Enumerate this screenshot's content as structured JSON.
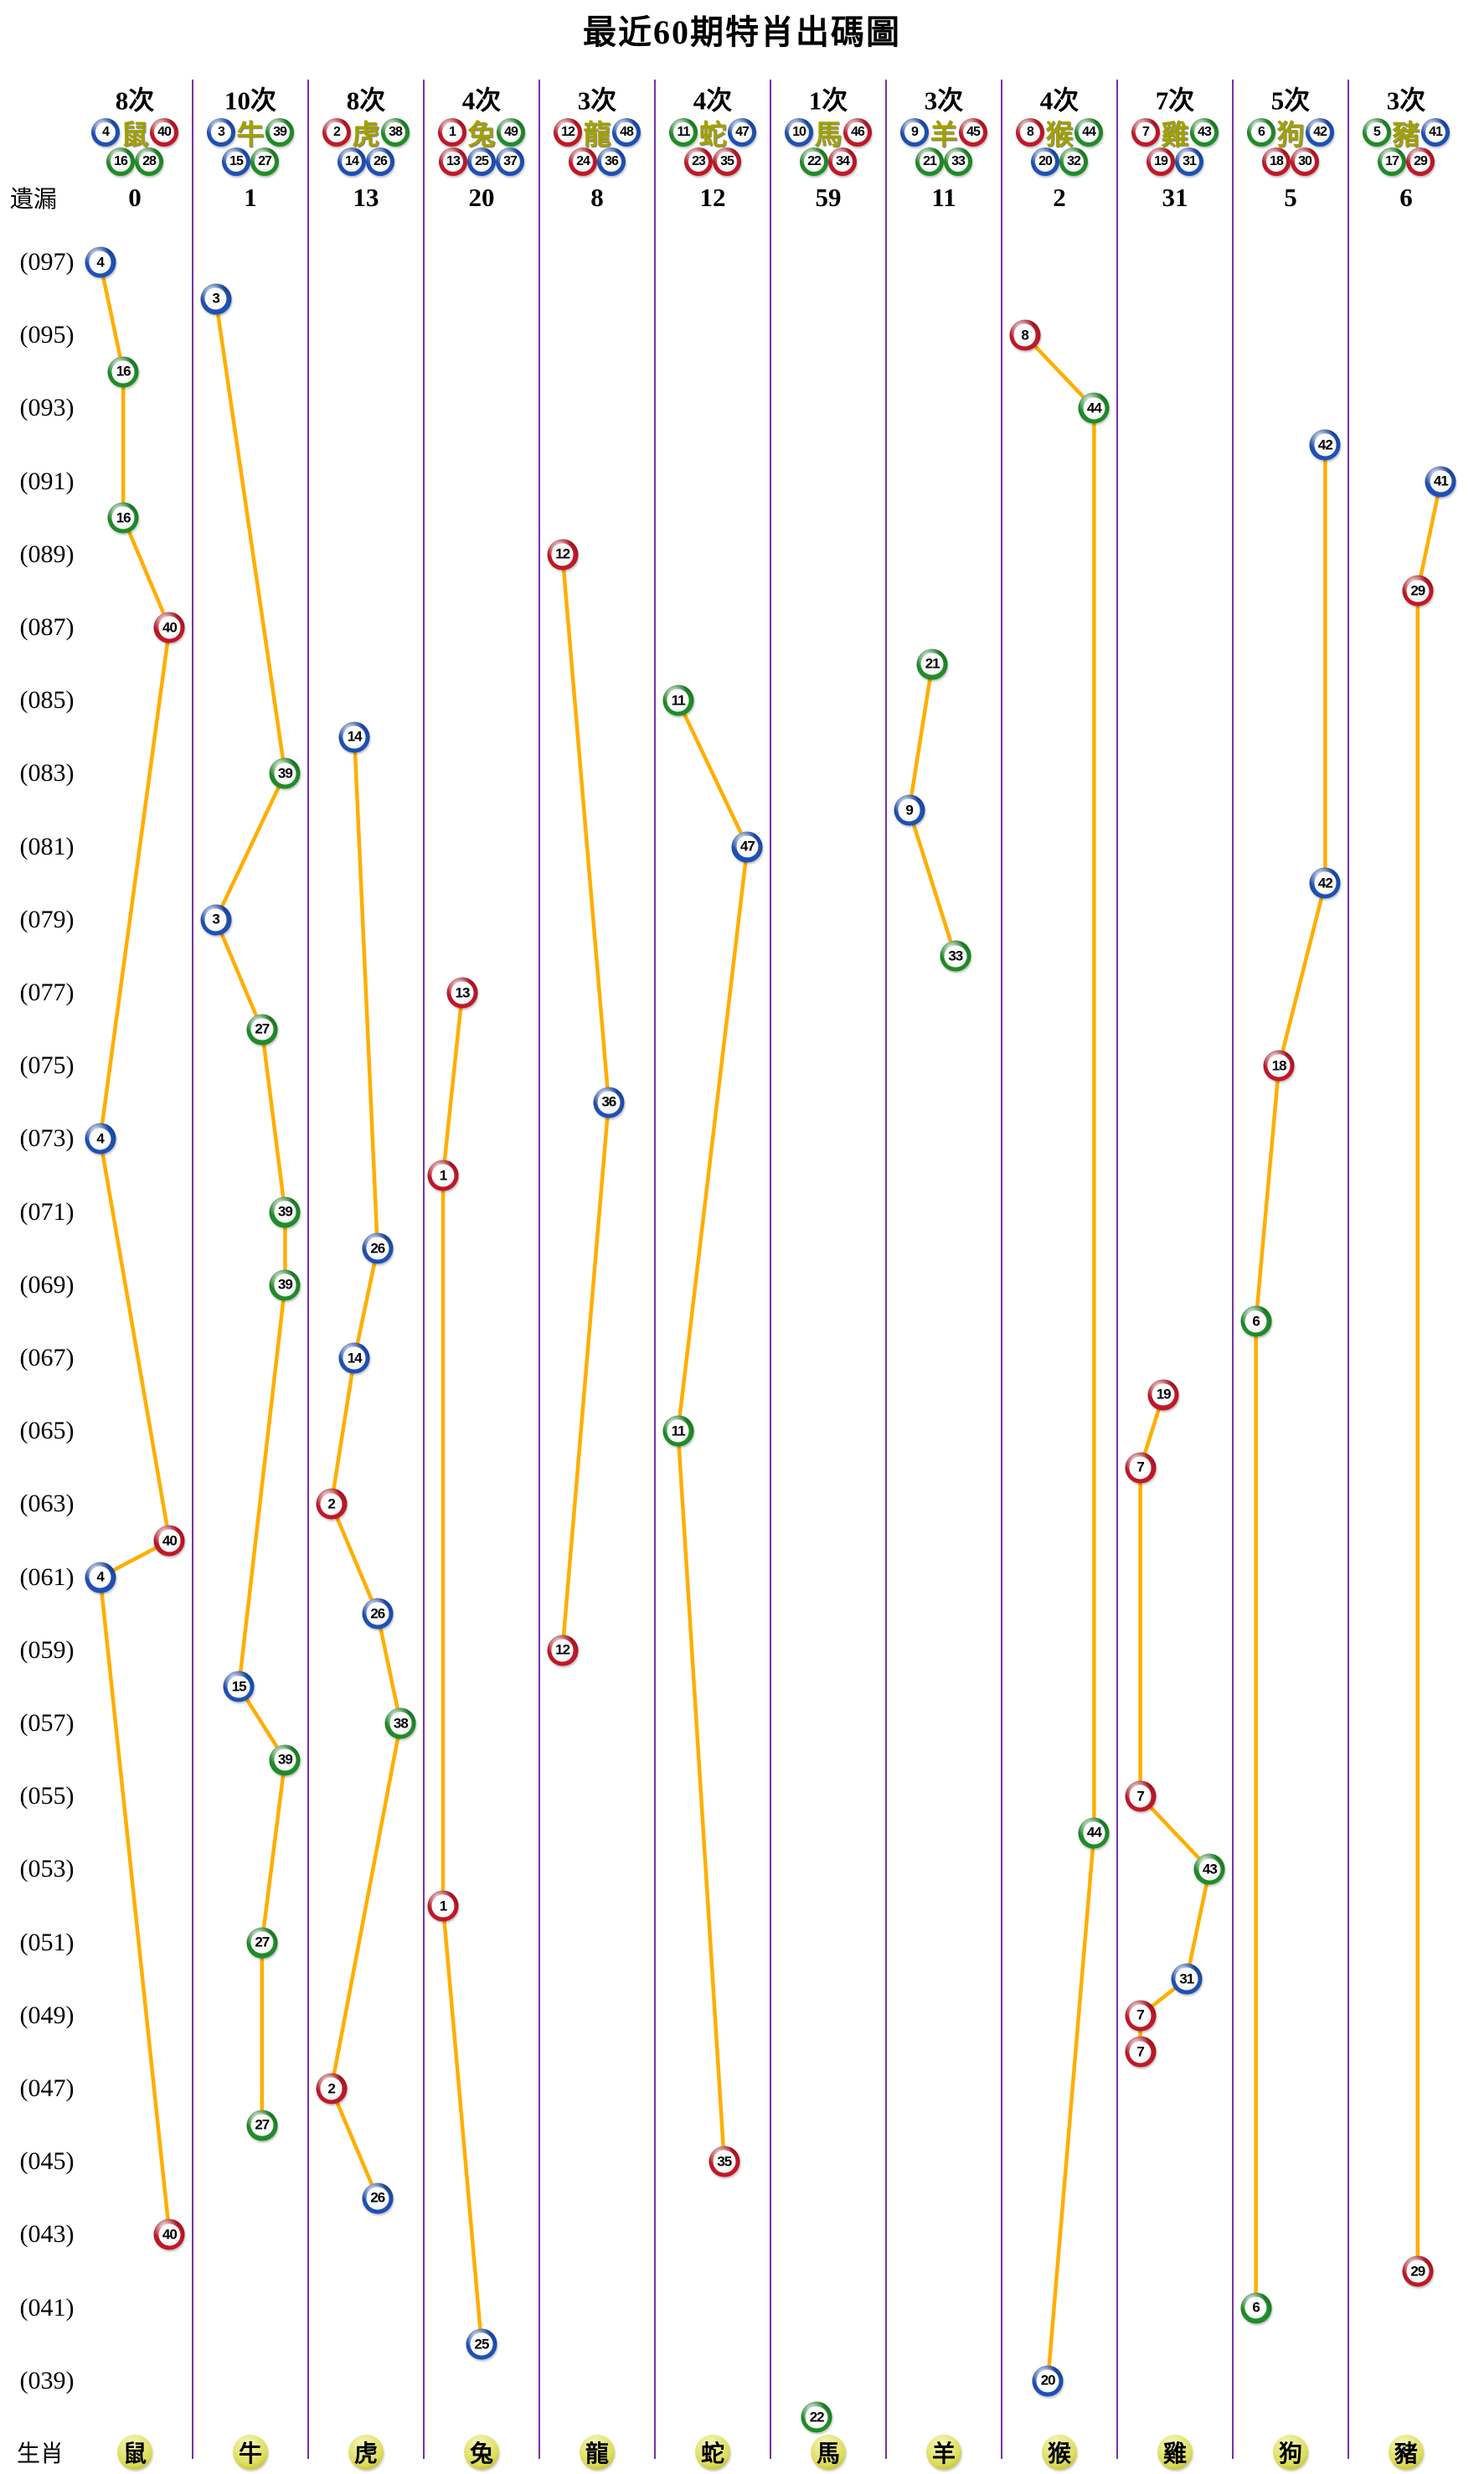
{
  "colors": {
    "line": "#FFAE00",
    "separator": "#7633A6",
    "ball_red": "#C01828",
    "ball_blue": "#1E50B4",
    "ball_green": "#1F8C28",
    "zodiac_header_text": "#A2A100",
    "badge_yellow": "#DCDC5A",
    "title_text": "#000000"
  },
  "ball_colors": {
    "red": [
      1,
      2,
      7,
      8,
      12,
      13,
      18,
      19,
      23,
      24,
      29,
      30,
      34,
      35,
      40,
      45,
      46
    ],
    "blue": [
      3,
      4,
      9,
      10,
      14,
      15,
      20,
      25,
      26,
      31,
      36,
      37,
      41,
      42,
      47,
      48
    ],
    "green": [
      5,
      6,
      11,
      16,
      17,
      21,
      22,
      27,
      28,
      32,
      33,
      38,
      39,
      43,
      44,
      49
    ]
  },
  "chart_data": {
    "type": "scatter",
    "title": "最近60期特肖出碼圖",
    "miss_label": "遺漏",
    "zodiac_row_label": "生肖",
    "grid": false,
    "legend": "none",
    "y_axis": {
      "labels": [
        "(097)",
        "(095)",
        "(093)",
        "(091)",
        "(089)",
        "(087)",
        "(085)",
        "(083)",
        "(081)",
        "(079)",
        "(077)",
        "(075)",
        "(073)",
        "(071)",
        "(069)",
        "(067)",
        "(065)",
        "(063)",
        "(061)",
        "(059)",
        "(057)",
        "(055)",
        "(053)",
        "(051)",
        "(049)",
        "(047)",
        "(045)",
        "(043)",
        "(041)",
        "(039)"
      ],
      "period_range": [
        97,
        38
      ],
      "direction": "newest-on-top"
    },
    "columns": [
      {
        "zodiac": "鼠",
        "count_label": "8次",
        "miss": 0,
        "numbers": [
          4,
          16,
          28,
          40
        ],
        "draws": [
          {
            "period": 97,
            "ball": 4
          },
          {
            "period": 94,
            "ball": 16
          },
          {
            "period": 90,
            "ball": 16
          },
          {
            "period": 87,
            "ball": 40
          },
          {
            "period": 73,
            "ball": 4
          },
          {
            "period": 62,
            "ball": 40
          },
          {
            "period": 61,
            "ball": 4
          },
          {
            "period": 43,
            "ball": 40
          }
        ]
      },
      {
        "zodiac": "牛",
        "count_label": "10次",
        "miss": 1,
        "numbers": [
          3,
          15,
          27,
          39
        ],
        "draws": [
          {
            "period": 96,
            "ball": 3
          },
          {
            "period": 83,
            "ball": 39
          },
          {
            "period": 79,
            "ball": 3
          },
          {
            "period": 76,
            "ball": 27
          },
          {
            "period": 71,
            "ball": 39
          },
          {
            "period": 69,
            "ball": 39
          },
          {
            "period": 58,
            "ball": 15
          },
          {
            "period": 56,
            "ball": 39
          },
          {
            "period": 51,
            "ball": 27
          },
          {
            "period": 46,
            "ball": 27
          }
        ]
      },
      {
        "zodiac": "虎",
        "count_label": "8次",
        "miss": 13,
        "numbers": [
          2,
          14,
          26,
          38
        ],
        "draws": [
          {
            "period": 84,
            "ball": 14
          },
          {
            "period": 70,
            "ball": 26
          },
          {
            "period": 67,
            "ball": 14
          },
          {
            "period": 63,
            "ball": 2
          },
          {
            "period": 60,
            "ball": 26
          },
          {
            "period": 57,
            "ball": 38
          },
          {
            "period": 47,
            "ball": 2
          },
          {
            "period": 44,
            "ball": 26
          }
        ]
      },
      {
        "zodiac": "兔",
        "count_label": "4次",
        "miss": 20,
        "numbers": [
          1,
          13,
          25,
          37,
          49
        ],
        "draws": [
          {
            "period": 77,
            "ball": 13
          },
          {
            "period": 72,
            "ball": 1
          },
          {
            "period": 52,
            "ball": 1
          },
          {
            "period": 40,
            "ball": 25
          }
        ]
      },
      {
        "zodiac": "龍",
        "count_label": "3次",
        "miss": 8,
        "numbers": [
          12,
          24,
          36,
          48
        ],
        "draws": [
          {
            "period": 89,
            "ball": 12
          },
          {
            "period": 74,
            "ball": 36
          },
          {
            "period": 59,
            "ball": 12
          }
        ]
      },
      {
        "zodiac": "蛇",
        "count_label": "4次",
        "miss": 12,
        "numbers": [
          11,
          23,
          35,
          47
        ],
        "draws": [
          {
            "period": 85,
            "ball": 11
          },
          {
            "period": 81,
            "ball": 47
          },
          {
            "period": 65,
            "ball": 11
          },
          {
            "period": 45,
            "ball": 35
          }
        ]
      },
      {
        "zodiac": "馬",
        "count_label": "1次",
        "miss": 59,
        "numbers": [
          10,
          22,
          34,
          46
        ],
        "draws": [
          {
            "period": 38,
            "ball": 22
          }
        ]
      },
      {
        "zodiac": "羊",
        "count_label": "3次",
        "miss": 11,
        "numbers": [
          9,
          21,
          33,
          45
        ],
        "draws": [
          {
            "period": 86,
            "ball": 21
          },
          {
            "period": 82,
            "ball": 9
          },
          {
            "period": 78,
            "ball": 33
          }
        ]
      },
      {
        "zodiac": "猴",
        "count_label": "4次",
        "miss": 2,
        "numbers": [
          8,
          20,
          32,
          44
        ],
        "draws": [
          {
            "period": 95,
            "ball": 8
          },
          {
            "period": 93,
            "ball": 44
          },
          {
            "period": 54,
            "ball": 44
          },
          {
            "period": 39,
            "ball": 20
          }
        ]
      },
      {
        "zodiac": "雞",
        "count_label": "7次",
        "miss": 31,
        "numbers": [
          7,
          19,
          31,
          43
        ],
        "draws": [
          {
            "period": 66,
            "ball": 19
          },
          {
            "period": 64,
            "ball": 7
          },
          {
            "period": 55,
            "ball": 7
          },
          {
            "period": 53,
            "ball": 43
          },
          {
            "period": 50,
            "ball": 31
          },
          {
            "period": 49,
            "ball": 7
          },
          {
            "period": 48,
            "ball": 7
          }
        ]
      },
      {
        "zodiac": "狗",
        "count_label": "5次",
        "miss": 5,
        "numbers": [
          6,
          18,
          30,
          42
        ],
        "draws": [
          {
            "period": 92,
            "ball": 42
          },
          {
            "period": 80,
            "ball": 42
          },
          {
            "period": 75,
            "ball": 18
          },
          {
            "period": 68,
            "ball": 6
          },
          {
            "period": 41,
            "ball": 6
          }
        ]
      },
      {
        "zodiac": "豬",
        "count_label": "3次",
        "miss": 6,
        "numbers": [
          5,
          17,
          29,
          41
        ],
        "draws": [
          {
            "period": 91,
            "ball": 41
          },
          {
            "period": 88,
            "ball": 29
          },
          {
            "period": 42,
            "ball": 29
          }
        ]
      }
    ]
  }
}
